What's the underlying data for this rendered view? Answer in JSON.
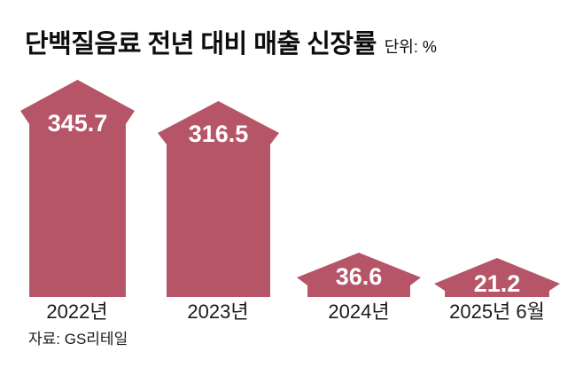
{
  "header": {
    "title": "단백질음료 전년 대비 매출 신장률",
    "unit_label": "단위: %"
  },
  "footer": {
    "source": "자료: GS리테일"
  },
  "colors": {
    "arrow": "#b65568",
    "value_text": "#ffffff",
    "title_text": "#0d0d0d",
    "label_text": "#1a1a1a"
  },
  "chart_data": {
    "type": "bar",
    "style": "upward-arrow-pictogram",
    "title": "단백질음료 전년 대비 매출 신장률",
    "unit": "%",
    "categories": [
      "2022년",
      "2023년",
      "2024년",
      "2025년 6월"
    ],
    "values": [
      345.7,
      316.5,
      36.6,
      21.2
    ],
    "series_name": "전년 대비 매출 신장률",
    "value_label_position": "inside-arrow-top",
    "value_label_color": "#ffffff",
    "bar_color": "#b65568",
    "baseline_aligned": true,
    "axes_shown": false,
    "grid": false,
    "legend": false,
    "source": "자료: GS리테일"
  }
}
